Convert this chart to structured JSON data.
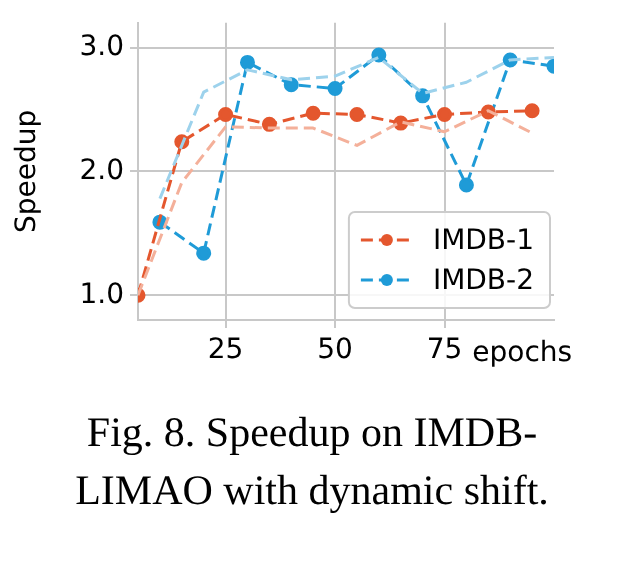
{
  "chart_data": {
    "type": "line",
    "ylabel": "Speedup",
    "xlabel": "epochs",
    "xlim": [
      5,
      100
    ],
    "xticks": [
      25,
      50,
      75
    ],
    "ylim": [
      0.8,
      3.2
    ],
    "yticks": [
      {
        "value": 1,
        "label": "1.0"
      },
      {
        "value": 2,
        "label": "2.0"
      },
      {
        "value": 3,
        "label": "3.0"
      }
    ],
    "grid": true,
    "legend": "bottom right",
    "marker": "circle",
    "line_style": "dashed",
    "annotations": [
      "Fig. 8.  Speedup on IMDB-LIMAO with dynamic shift."
    ],
    "series": [
      {
        "color": "#f4b09a",
        "marker": "none",
        "x": [
          5,
          15,
          25,
          35,
          45,
          55,
          65,
          75,
          85,
          95
        ],
        "values": [
          1.0,
          1.91,
          2.36,
          2.35,
          2.35,
          2.21,
          2.4,
          2.32,
          2.49,
          2.31
        ]
      },
      {
        "color": "#9dd2ec",
        "marker": "none",
        "x": [
          10,
          20,
          30,
          40,
          50,
          60,
          70,
          80,
          90,
          100
        ],
        "values": [
          1.78,
          2.64,
          2.82,
          2.74,
          2.77,
          2.92,
          2.63,
          2.72,
          2.9,
          2.92
        ]
      },
      {
        "name": "IMDB-1",
        "color": "#e4572e",
        "x": [
          5,
          15,
          25,
          35,
          45,
          55,
          65,
          75,
          85,
          95
        ],
        "values": [
          1.0,
          2.24,
          2.46,
          2.38,
          2.47,
          2.46,
          2.39,
          2.46,
          2.48,
          2.49
        ]
      },
      {
        "name": "IMDB-2",
        "color": "#1f9bd7",
        "x": [
          10,
          20,
          30,
          40,
          50,
          60,
          70,
          80,
          90,
          100
        ],
        "values": [
          1.59,
          1.34,
          2.88,
          2.7,
          2.67,
          2.94,
          2.61,
          1.89,
          2.9,
          2.85
        ]
      }
    ]
  }
}
